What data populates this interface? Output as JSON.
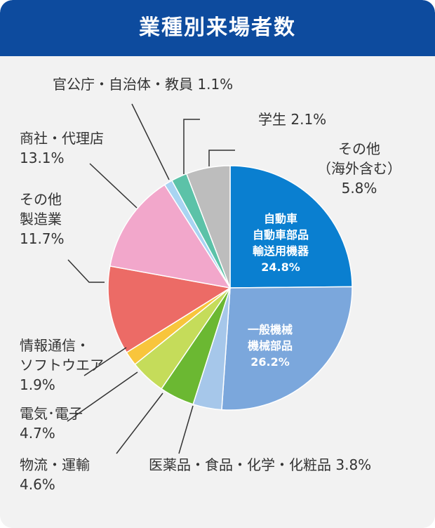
{
  "chart_data": {
    "type": "pie",
    "title": "業種別来場者数",
    "slices": [
      {
        "label_lines": [
          "自動車",
          "自動車部品",
          "輸送用機器"
        ],
        "value_text": "24.8%",
        "value": 24.8,
        "color": "#0a7fd0"
      },
      {
        "label_lines": [
          "一般機械",
          "機械部品"
        ],
        "value_text": "26.2%",
        "value": 26.2,
        "color": "#7ba7dc"
      },
      {
        "label_lines": [
          "医薬品・食品・化学・化粧品"
        ],
        "value_text": "3.8%",
        "value": 3.8,
        "color": "#a6c7ea"
      },
      {
        "label_lines": [
          "物流・運輸"
        ],
        "value_text": "4.6%",
        "value": 4.6,
        "color": "#6bb832"
      },
      {
        "label_lines": [
          "電気･電子"
        ],
        "value_text": "4.7%",
        "value": 4.7,
        "color": "#c5dc5a"
      },
      {
        "label_lines": [
          "情報通信・",
          "ソフトウエア"
        ],
        "value_text": "1.9%",
        "value": 1.9,
        "color": "#f8c53c"
      },
      {
        "label_lines": [
          "その他",
          "製造業"
        ],
        "value_text": "11.7%",
        "value": 11.7,
        "color": "#ec6b66"
      },
      {
        "label_lines": [
          "商社・代理店"
        ],
        "value_text": "13.1%",
        "value": 13.1,
        "color": "#f2a7cb"
      },
      {
        "label_lines": [
          "官公庁・自治体・教員"
        ],
        "value_text": "1.1%",
        "value": 1.1,
        "color": "#a9d4f2"
      },
      {
        "label_lines": [
          "学生"
        ],
        "value_text": "2.1%",
        "value": 2.1,
        "color": "#5cc2a8"
      },
      {
        "label_lines": [
          "その他",
          "（海外含む）"
        ],
        "value_text": "5.8%",
        "value": 5.8,
        "color": "#bdbdbd"
      }
    ]
  }
}
